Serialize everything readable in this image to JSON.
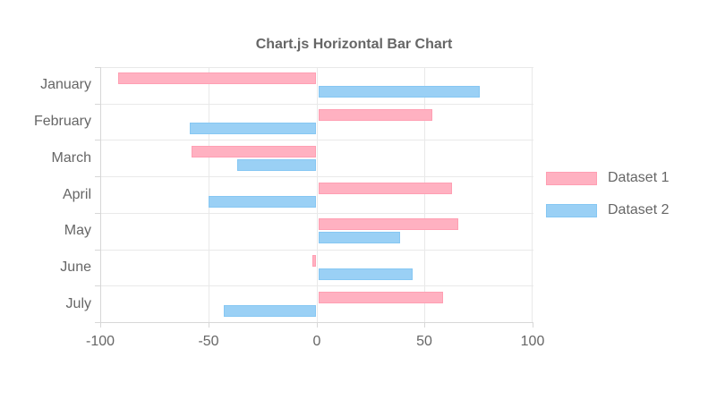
{
  "colors": {
    "background": "#ffffff",
    "text": "#666666",
    "grid": "#e9e9e9",
    "axis_line": "#d7d7d7"
  },
  "chart_data": {
    "type": "bar",
    "orientation": "horizontal",
    "title": "Chart.js Horizontal Bar Chart",
    "categories": [
      "January",
      "February",
      "March",
      "April",
      "May",
      "June",
      "July"
    ],
    "series": [
      {
        "name": "Dataset 1",
        "color": "#ffb1c1",
        "border_color": "#ff9fb3",
        "values": [
          -92,
          53,
          -58,
          62,
          65,
          -2,
          58
        ]
      },
      {
        "name": "Dataset 2",
        "color": "#9ad0f5",
        "border_color": "#86c7f3",
        "values": [
          75,
          -59,
          -37,
          -50,
          38,
          44,
          -43
        ]
      }
    ],
    "xlim": [
      -100,
      100
    ],
    "x_ticks": [
      -100,
      -50,
      0,
      50,
      100
    ],
    "x_tick_labels": [
      "-100",
      "-50",
      "0",
      "50",
      "100"
    ],
    "grid": true,
    "legend_position": "right"
  }
}
